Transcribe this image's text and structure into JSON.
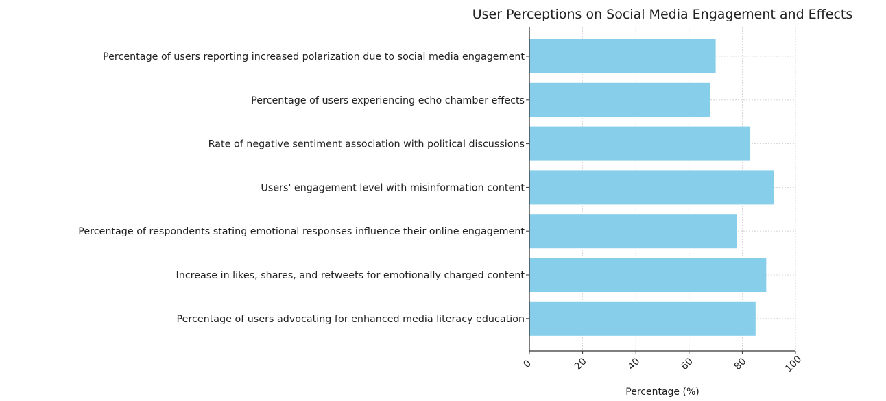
{
  "chart_data": {
    "type": "bar",
    "orientation": "horizontal",
    "title": "User Perceptions on Social Media Engagement and Effects",
    "xlabel": "Percentage (%)",
    "ylabel": "",
    "xlim": [
      0,
      100
    ],
    "xticks": [
      "0",
      "20",
      "40",
      "60",
      "80",
      "100"
    ],
    "grid": true,
    "categories": [
      "Percentage of users reporting increased polarization due to social media engagement",
      "Percentage of users experiencing echo chamber effects",
      "Rate of negative sentiment association with political discussions",
      "Users' engagement level with misinformation content",
      "Percentage of respondents stating emotional responses influence their online engagement",
      "Increase in likes, shares, and retweets for emotionally charged content",
      "Percentage of users advocating for enhanced media literacy education"
    ],
    "values": [
      70,
      68,
      83,
      92,
      78,
      89,
      85
    ],
    "bar_color": "#87CEEB"
  }
}
